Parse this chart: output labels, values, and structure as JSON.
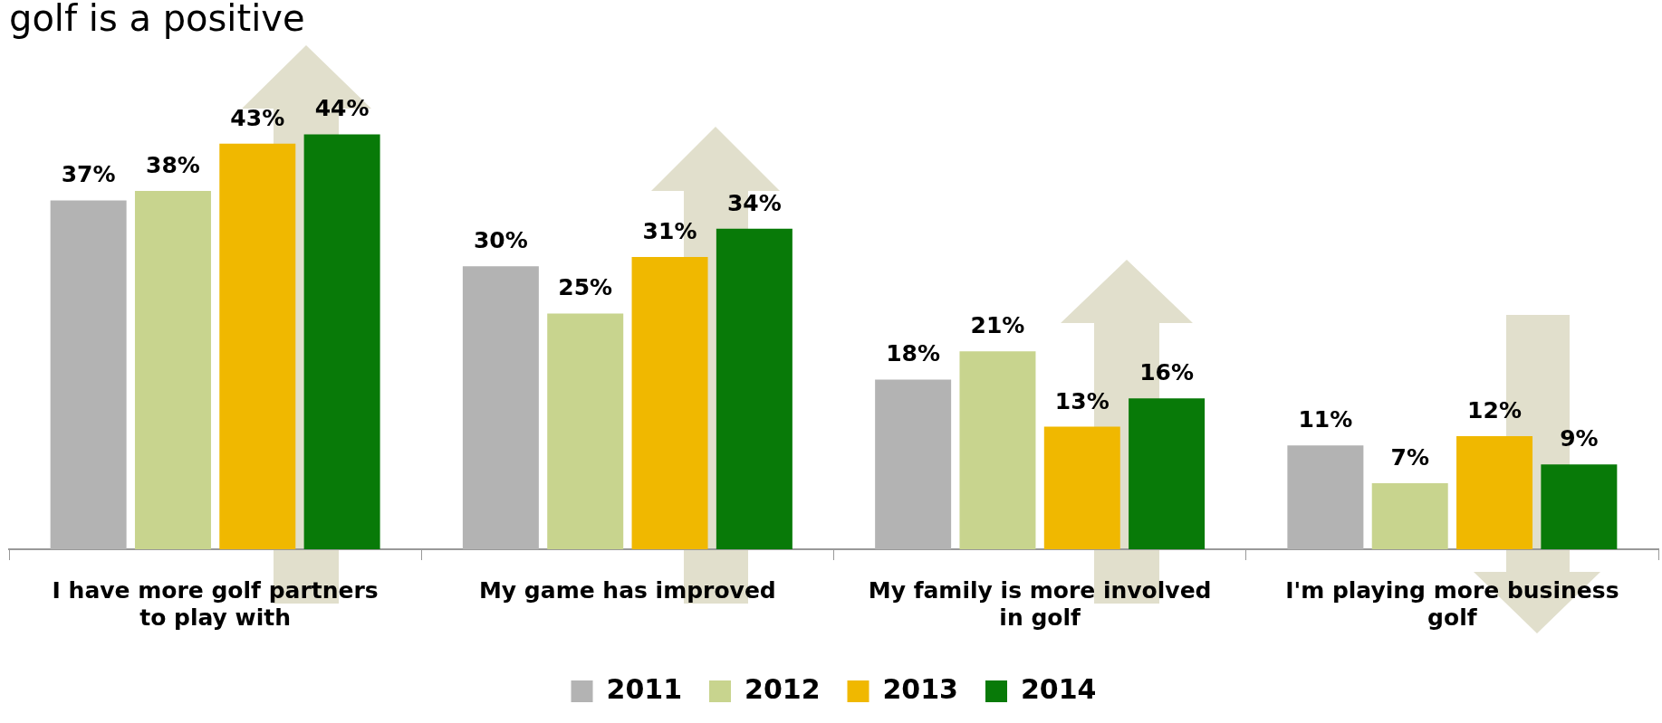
{
  "chart_data": {
    "type": "bar",
    "title": "golf is a positive",
    "categories": [
      "I have more golf partners to play with",
      "My game has improved",
      "My family is more involved in golf",
      "I'm playing more business golf"
    ],
    "series": [
      {
        "name": "2011",
        "color": "#b3b3b3",
        "values": [
          37,
          30,
          18,
          11
        ],
        "value_labels": [
          "37%",
          "30%",
          "18%",
          "11%"
        ]
      },
      {
        "name": "2012",
        "color": "#c8d48e",
        "values": [
          38,
          25,
          21,
          7
        ],
        "value_labels": [
          "38%",
          "25%",
          "21%",
          "7%"
        ]
      },
      {
        "name": "2013",
        "color": "#f0b800",
        "values": [
          43,
          31,
          13,
          12
        ],
        "value_labels": [
          "43%",
          "31%",
          "13%",
          "12%"
        ]
      },
      {
        "name": "2014",
        "color": "#087a08",
        "values": [
          44,
          34,
          16,
          9
        ],
        "value_labels": [
          "44%",
          "34%",
          "16%",
          "9%"
        ]
      }
    ],
    "legend": "bottom",
    "grid": false
  }
}
